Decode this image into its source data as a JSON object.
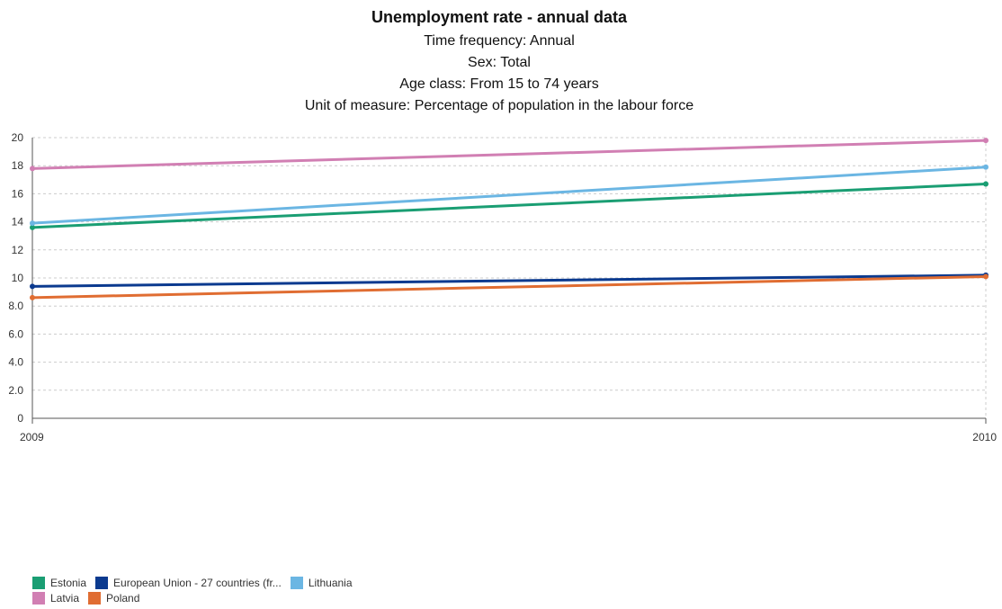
{
  "chart_data": {
    "type": "line",
    "title": "Unemployment rate - annual data",
    "subtitles": [
      "Time frequency: Annual",
      "Sex: Total",
      "Age class: From 15 to 74 years",
      "Unit of measure: Percentage of population in the labour force"
    ],
    "x": [
      "2009",
      "2010"
    ],
    "ylim": [
      0,
      20
    ],
    "yticks": [
      "0",
      "2.0",
      "4.0",
      "6.0",
      "8.0",
      "10",
      "12",
      "14",
      "16",
      "18",
      "20"
    ],
    "ytick_values": [
      0,
      2,
      4,
      6,
      8,
      10,
      12,
      14,
      16,
      18,
      20
    ],
    "grid": true,
    "legend_position": "bottom-left",
    "series": [
      {
        "name": "Estonia",
        "color": "#1a9e73",
        "values": [
          13.6,
          16.7
        ]
      },
      {
        "name": "European Union - 27 countries (fr...",
        "color": "#0b3a8f",
        "values": [
          9.4,
          10.2
        ]
      },
      {
        "name": "Lithuania",
        "color": "#6bb6e3",
        "values": [
          13.9,
          17.9
        ]
      },
      {
        "name": "Latvia",
        "color": "#d17fb3",
        "values": [
          17.8,
          19.8
        ]
      },
      {
        "name": "Poland",
        "color": "#e06d32",
        "values": [
          8.6,
          10.1
        ]
      }
    ]
  },
  "legend": {
    "rows": [
      [
        0,
        1,
        2
      ],
      [
        3,
        4
      ]
    ]
  }
}
